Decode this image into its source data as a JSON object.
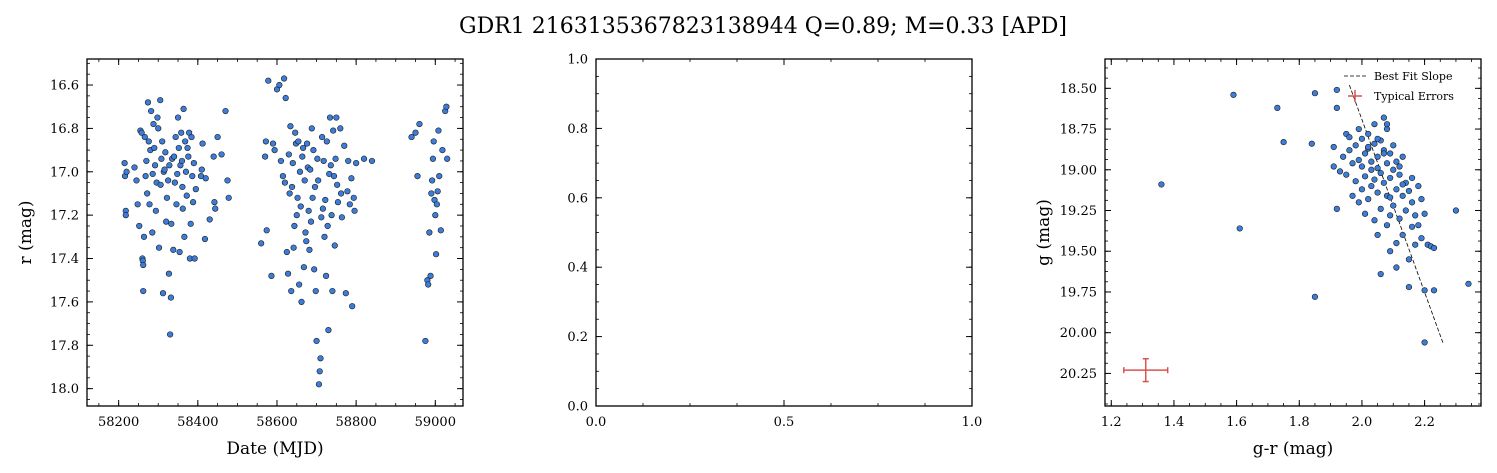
{
  "figure": {
    "title": "GDR1 2163135367823138944  Q=0.89; M=0.33 [APD]"
  },
  "chart_data": [
    {
      "type": "scatter",
      "xlabel": "Date (MJD)",
      "ylabel": "r (mag)",
      "xlim": [
        58120,
        59070
      ],
      "ylim": [
        18.08,
        16.48
      ],
      "y_inverted": true,
      "xticks": [
        58200,
        58400,
        58600,
        58800,
        59000
      ],
      "xtick_labels": [
        "58200",
        "58400",
        "58600",
        "58800",
        "59000"
      ],
      "yticks": [
        16.6,
        16.8,
        17.0,
        17.2,
        17.4,
        17.6,
        17.8,
        18.0
      ],
      "ytick_labels": [
        "16.6",
        "16.8",
        "17.0",
        "17.2",
        "17.4",
        "17.6",
        "17.8",
        "18.0"
      ],
      "marker_color": "#3b7dd8",
      "points": [
        [
          58215,
          16.96
        ],
        [
          58216,
          17.02
        ],
        [
          58218,
          17.18
        ],
        [
          58218,
          17.2
        ],
        [
          58220,
          17.0
        ],
        [
          58240,
          16.98
        ],
        [
          58245,
          17.04
        ],
        [
          58248,
          17.15
        ],
        [
          58252,
          17.25
        ],
        [
          58255,
          16.81
        ],
        [
          58258,
          16.82
        ],
        [
          58260,
          17.4
        ],
        [
          58261,
          17.41
        ],
        [
          58262,
          17.43
        ],
        [
          58262,
          17.55
        ],
        [
          58264,
          17.3
        ],
        [
          58266,
          16.84
        ],
        [
          58268,
          17.02
        ],
        [
          58270,
          16.95
        ],
        [
          58272,
          17.1
        ],
        [
          58274,
          16.68
        ],
        [
          58276,
          16.86
        ],
        [
          58278,
          17.15
        ],
        [
          58280,
          16.9
        ],
        [
          58282,
          16.72
        ],
        [
          58285,
          17.28
        ],
        [
          58286,
          17.01
        ],
        [
          58288,
          16.78
        ],
        [
          58290,
          16.89
        ],
        [
          58292,
          16.97
        ],
        [
          58294,
          17.18
        ],
        [
          58296,
          17.05
        ],
        [
          58298,
          16.75
        ],
        [
          58300,
          16.8
        ],
        [
          58302,
          17.35
        ],
        [
          58305,
          16.67
        ],
        [
          58306,
          17.06
        ],
        [
          58308,
          16.94
        ],
        [
          58310,
          16.86
        ],
        [
          58312,
          17.56
        ],
        [
          58314,
          17.0
        ],
        [
          58316,
          16.99
        ],
        [
          58318,
          16.91
        ],
        [
          58320,
          17.23
        ],
        [
          58322,
          17.12
        ],
        [
          58325,
          17.04
        ],
        [
          58327,
          17.47
        ],
        [
          58328,
          16.97
        ],
        [
          58330,
          17.75
        ],
        [
          58332,
          17.58
        ],
        [
          58333,
          17.24
        ],
        [
          58335,
          16.94
        ],
        [
          58338,
          17.36
        ],
        [
          58340,
          16.93
        ],
        [
          58342,
          17.05
        ],
        [
          58344,
          16.84
        ],
        [
          58346,
          17.15
        ],
        [
          58348,
          17.01
        ],
        [
          58350,
          16.75
        ],
        [
          58352,
          16.89
        ],
        [
          58354,
          17.37
        ],
        [
          58356,
          16.97
        ],
        [
          58358,
          16.82
        ],
        [
          58360,
          16.95
        ],
        [
          58361,
          17.07
        ],
        [
          58362,
          17.17
        ],
        [
          58364,
          16.71
        ],
        [
          58366,
          17.3
        ],
        [
          58368,
          16.86
        ],
        [
          58370,
          17.0
        ],
        [
          58372,
          17.11
        ],
        [
          58374,
          16.89
        ],
        [
          58376,
          16.93
        ],
        [
          58378,
          16.82
        ],
        [
          58380,
          17.4
        ],
        [
          58382,
          17.24
        ],
        [
          58384,
          16.84
        ],
        [
          58386,
          17.02
        ],
        [
          58388,
          17.14
        ],
        [
          58390,
          16.96
        ],
        [
          58392,
          17.4
        ],
        [
          58395,
          17.08
        ],
        [
          58408,
          17.02
        ],
        [
          58410,
          16.99
        ],
        [
          58412,
          16.87
        ],
        [
          58418,
          17.31
        ],
        [
          58420,
          17.03
        ],
        [
          58430,
          17.22
        ],
        [
          58440,
          16.93
        ],
        [
          58442,
          17.14
        ],
        [
          58444,
          17.17
        ],
        [
          58450,
          16.84
        ],
        [
          58460,
          16.92
        ],
        [
          58470,
          16.72
        ],
        [
          58475,
          17.04
        ],
        [
          58478,
          17.12
        ],
        [
          58560,
          17.33
        ],
        [
          58570,
          16.93
        ],
        [
          58572,
          16.86
        ],
        [
          58574,
          17.27
        ],
        [
          58578,
          16.58
        ],
        [
          58586,
          17.48
        ],
        [
          58590,
          16.87
        ],
        [
          58594,
          16.9
        ],
        [
          58600,
          16.62
        ],
        [
          58606,
          16.6
        ],
        [
          58610,
          16.95
        ],
        [
          58615,
          17.02
        ],
        [
          58618,
          16.57
        ],
        [
          58620,
          17.05
        ],
        [
          58622,
          16.66
        ],
        [
          58625,
          17.37
        ],
        [
          58628,
          17.47
        ],
        [
          58630,
          16.92
        ],
        [
          58632,
          17.1
        ],
        [
          58634,
          16.79
        ],
        [
          58636,
          17.55
        ],
        [
          58638,
          17.07
        ],
        [
          58640,
          16.96
        ],
        [
          58642,
          17.35
        ],
        [
          58644,
          17.25
        ],
        [
          58646,
          16.82
        ],
        [
          58648,
          16.87
        ],
        [
          58650,
          17.2
        ],
        [
          58652,
          17.12
        ],
        [
          58654,
          16.86
        ],
        [
          58656,
          17.52
        ],
        [
          58658,
          17.0
        ],
        [
          58660,
          17.16
        ],
        [
          58662,
          17.6
        ],
        [
          58664,
          16.93
        ],
        [
          58666,
          16.89
        ],
        [
          58668,
          17.44
        ],
        [
          58670,
          17.04
        ],
        [
          58672,
          17.28
        ],
        [
          58674,
          17.32
        ],
        [
          58676,
          16.87
        ],
        [
          58678,
          16.98
        ],
        [
          58680,
          17.18
        ],
        [
          58682,
          17.36
        ],
        [
          58684,
          16.99
        ],
        [
          58686,
          17.23
        ],
        [
          58688,
          16.8
        ],
        [
          58690,
          17.12
        ],
        [
          58692,
          16.9
        ],
        [
          58694,
          17.45
        ],
        [
          58696,
          17.07
        ],
        [
          58698,
          17.55
        ],
        [
          58700,
          17.78
        ],
        [
          58702,
          16.94
        ],
        [
          58704,
          17.04
        ],
        [
          58706,
          17.98
        ],
        [
          58708,
          17.92
        ],
        [
          58710,
          17.86
        ],
        [
          58712,
          17.21
        ],
        [
          58714,
          16.84
        ],
        [
          58716,
          17.17
        ],
        [
          58718,
          16.95
        ],
        [
          58720,
          17.3
        ],
        [
          58722,
          17.13
        ],
        [
          58724,
          17.48
        ],
        [
          58726,
          16.86
        ],
        [
          58728,
          17.25
        ],
        [
          58730,
          17.73
        ],
        [
          58732,
          17.01
        ],
        [
          58734,
          16.75
        ],
        [
          58736,
          16.97
        ],
        [
          58738,
          17.2
        ],
        [
          58740,
          17.55
        ],
        [
          58742,
          16.81
        ],
        [
          58744,
          17.02
        ],
        [
          58746,
          17.34
        ],
        [
          58748,
          16.94
        ],
        [
          58750,
          16.75
        ],
        [
          58752,
          17.06
        ],
        [
          58754,
          17.14
        ],
        [
          58760,
          16.8
        ],
        [
          58762,
          17.1
        ],
        [
          58764,
          17.21
        ],
        [
          58770,
          16.88
        ],
        [
          58774,
          17.56
        ],
        [
          58778,
          17.09
        ],
        [
          58780,
          16.95
        ],
        [
          58784,
          17.15
        ],
        [
          58788,
          17.03
        ],
        [
          58790,
          17.62
        ],
        [
          58794,
          17.12
        ],
        [
          58796,
          17.18
        ],
        [
          58800,
          16.96
        ],
        [
          58820,
          16.94
        ],
        [
          58840,
          16.95
        ],
        [
          58940,
          16.84
        ],
        [
          58950,
          16.82
        ],
        [
          58955,
          17.02
        ],
        [
          58960,
          16.78
        ],
        [
          58975,
          17.78
        ],
        [
          58980,
          17.5
        ],
        [
          58982,
          17.52
        ],
        [
          58985,
          17.28
        ],
        [
          58988,
          17.48
        ],
        [
          58990,
          17.1
        ],
        [
          58992,
          17.04
        ],
        [
          58994,
          16.94
        ],
        [
          58996,
          16.86
        ],
        [
          58998,
          17.13
        ],
        [
          59000,
          17.2
        ],
        [
          59002,
          17.38
        ],
        [
          59004,
          17.15
        ],
        [
          59006,
          17.09
        ],
        [
          59008,
          16.81
        ],
        [
          59010,
          17.02
        ],
        [
          59014,
          17.27
        ],
        [
          59018,
          16.9
        ],
        [
          59025,
          16.72
        ],
        [
          59028,
          16.7
        ],
        [
          59030,
          16.94
        ]
      ]
    },
    {
      "type": "scatter",
      "xlabel": "",
      "ylabel": "",
      "xlim": [
        0.0,
        1.0
      ],
      "ylim": [
        0.0,
        1.0
      ],
      "xticks": [
        0.0,
        0.5,
        1.0
      ],
      "xtick_labels": [
        "0.0",
        "0.5",
        "1.0"
      ],
      "yticks": [
        0.0,
        0.2,
        0.4,
        0.6,
        0.8,
        1.0
      ],
      "ytick_labels": [
        "0.0",
        "0.2",
        "0.4",
        "0.6",
        "0.8",
        "1.0"
      ],
      "points": []
    },
    {
      "type": "scatter",
      "xlabel": "g-r (mag)",
      "ylabel": "g (mag)",
      "xlim": [
        1.18,
        2.38
      ],
      "ylim": [
        20.45,
        18.32
      ],
      "y_inverted": true,
      "xticks": [
        1.2,
        1.4,
        1.6,
        1.8,
        2.0,
        2.2
      ],
      "xtick_labels": [
        "1.2",
        "1.4",
        "1.6",
        "1.8",
        "2.0",
        "2.2"
      ],
      "yticks": [
        18.5,
        18.75,
        19.0,
        19.25,
        19.5,
        19.75,
        20.0,
        20.25
      ],
      "ytick_labels": [
        "18.50",
        "18.75",
        "19.00",
        "19.25",
        "19.50",
        "19.75",
        "20.00",
        "20.25"
      ],
      "marker_color": "#3b7dd8",
      "legend": {
        "location": "upper right",
        "entries": [
          {
            "label": "Best Fit Slope",
            "style": "dashed-line",
            "color": "#000000"
          },
          {
            "label": "Typical Errors",
            "style": "errorbar",
            "color": "#d9534f"
          }
        ]
      },
      "best_fit_line": {
        "x": [
          1.96,
          2.26
        ],
        "y": [
          18.48,
          20.07
        ]
      },
      "typical_error": {
        "x": 1.31,
        "y": 20.23,
        "xerr": 0.07,
        "yerr": 0.07
      },
      "points": [
        [
          1.36,
          19.09
        ],
        [
          1.59,
          18.54
        ],
        [
          1.61,
          19.36
        ],
        [
          1.73,
          18.62
        ],
        [
          1.75,
          18.83
        ],
        [
          1.85,
          19.78
        ],
        [
          1.85,
          18.53
        ],
        [
          1.84,
          18.84
        ],
        [
          1.91,
          18.86
        ],
        [
          1.91,
          18.98
        ],
        [
          1.92,
          18.62
        ],
        [
          1.92,
          19.24
        ],
        [
          1.92,
          18.51
        ],
        [
          1.93,
          19.01
        ],
        [
          1.94,
          18.92
        ],
        [
          1.95,
          19.03
        ],
        [
          1.95,
          18.78
        ],
        [
          1.96,
          18.88
        ],
        [
          1.96,
          18.8
        ],
        [
          1.97,
          19.16
        ],
        [
          1.97,
          18.96
        ],
        [
          1.98,
          18.85
        ],
        [
          1.98,
          19.07
        ],
        [
          1.99,
          18.75
        ],
        [
          1.99,
          19.2
        ],
        [
          1.99,
          18.94
        ],
        [
          2.0,
          18.81
        ],
        [
          2.0,
          18.98
        ],
        [
          2.0,
          19.12
        ],
        [
          2.01,
          18.9
        ],
        [
          2.01,
          19.04
        ],
        [
          2.01,
          19.27
        ],
        [
          2.02,
          18.78
        ],
        [
          2.02,
          18.87
        ],
        [
          2.02,
          19.18
        ],
        [
          2.03,
          19.0
        ],
        [
          2.03,
          19.1
        ],
        [
          2.03,
          18.95
        ],
        [
          2.04,
          18.84
        ],
        [
          2.04,
          19.06
        ],
        [
          2.04,
          19.31
        ],
        [
          2.04,
          18.72
        ],
        [
          2.05,
          18.92
        ],
        [
          2.05,
          19.14
        ],
        [
          2.05,
          18.99
        ],
        [
          2.05,
          19.4
        ],
        [
          2.06,
          18.82
        ],
        [
          2.06,
          19.02
        ],
        [
          2.06,
          19.24
        ],
        [
          2.06,
          19.64
        ],
        [
          2.07,
          18.88
        ],
        [
          2.07,
          19.08
        ],
        [
          2.07,
          18.68
        ],
        [
          2.08,
          18.96
        ],
        [
          2.08,
          19.16
        ],
        [
          2.08,
          19.34
        ],
        [
          2.08,
          18.75
        ],
        [
          2.09,
          18.9
        ],
        [
          2.09,
          19.05
        ],
        [
          2.09,
          19.28
        ],
        [
          2.09,
          19.5
        ],
        [
          2.1,
          18.85
        ],
        [
          2.1,
          19.0
        ],
        [
          2.1,
          19.22
        ],
        [
          2.11,
          19.12
        ],
        [
          2.11,
          18.95
        ],
        [
          2.11,
          19.45
        ],
        [
          2.11,
          19.6
        ],
        [
          2.12,
          19.03
        ],
        [
          2.12,
          19.3
        ],
        [
          2.13,
          19.16
        ],
        [
          2.13,
          18.92
        ],
        [
          2.13,
          19.4
        ],
        [
          2.14,
          19.08
        ],
        [
          2.14,
          19.25
        ],
        [
          2.15,
          19.55
        ],
        [
          2.15,
          19.13
        ],
        [
          2.15,
          19.72
        ],
        [
          2.16,
          19.2
        ],
        [
          2.16,
          19.05
        ],
        [
          2.16,
          19.35
        ],
        [
          2.17,
          19.28
        ],
        [
          2.17,
          19.46
        ],
        [
          2.18,
          19.1
        ],
        [
          2.18,
          19.34
        ],
        [
          2.19,
          19.18
        ],
        [
          2.19,
          19.42
        ],
        [
          2.2,
          19.74
        ],
        [
          2.2,
          19.27
        ],
        [
          2.2,
          20.06
        ],
        [
          2.21,
          19.46
        ],
        [
          2.22,
          19.47
        ],
        [
          2.23,
          19.48
        ],
        [
          2.23,
          19.74
        ],
        [
          2.3,
          19.25
        ],
        [
          2.34,
          19.7
        ],
        [
          2.02,
          18.86
        ],
        [
          2.05,
          18.81
        ],
        [
          2.07,
          18.9
        ],
        [
          2.09,
          19.17
        ],
        [
          2.12,
          18.98
        ],
        [
          2.08,
          18.72
        ],
        [
          2.13,
          19.09
        ]
      ]
    }
  ]
}
